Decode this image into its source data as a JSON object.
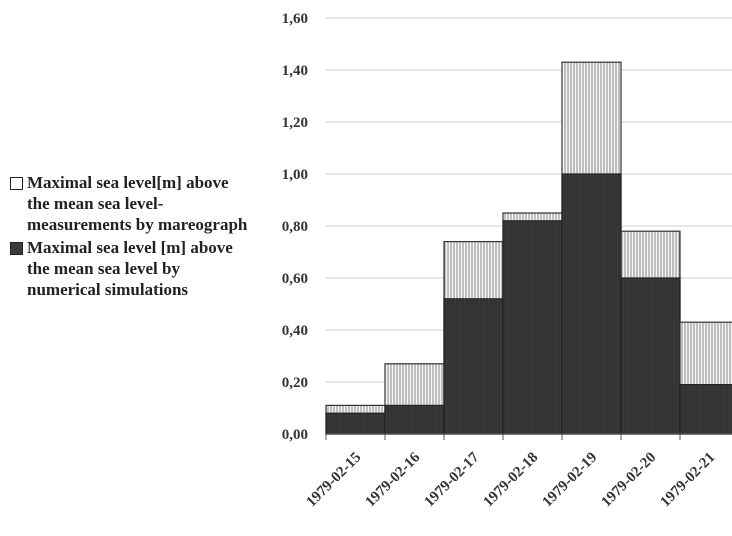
{
  "chart_data": {
    "type": "bar",
    "categories": [
      "1979-02-15",
      "1979-02-16",
      "1979-02-17",
      "1979-02-18",
      "1979-02-19",
      "1979-02-20",
      "1979-02-21"
    ],
    "series": [
      {
        "name": "Maximal sea level[m] above the mean sea level- measurements by mareograph",
        "values": [
          0.11,
          0.27,
          0.74,
          0.85,
          1.43,
          0.78,
          0.43
        ],
        "color": "#f2f2f2",
        "pattern": "vertical-lines"
      },
      {
        "name": "Maximal sea level [m] above the mean sea level by numerical simulations",
        "values": [
          0.08,
          0.11,
          0.52,
          0.82,
          1.0,
          0.6,
          0.19
        ],
        "color": "#3a3a3a"
      }
    ],
    "overlay": "simulation drawn in front of measurement",
    "ylim": [
      0,
      1.6
    ],
    "yticks": [
      "0,00",
      "0,20",
      "0,40",
      "0,60",
      "0,80",
      "1,00",
      "1,20",
      "1,40",
      "1,60"
    ],
    "grid": true,
    "legend_position": "left",
    "bar_gap": 0
  }
}
